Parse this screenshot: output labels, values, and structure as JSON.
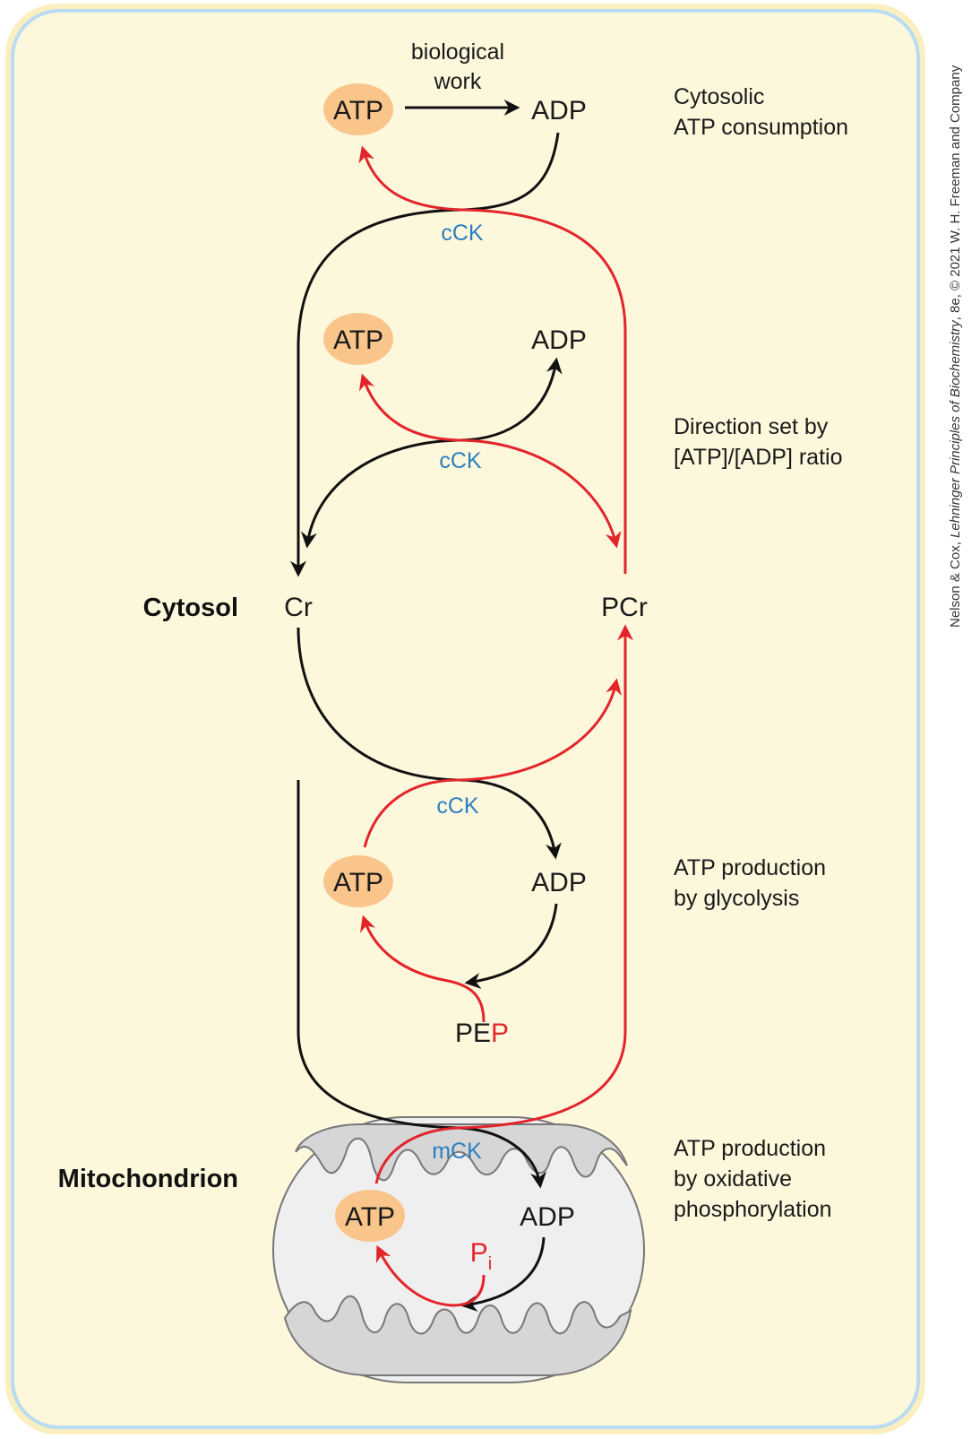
{
  "figure": {
    "credit_prefix": "Nelson & Cox, ",
    "credit_title": "Lehninger Principles of Biochemistry",
    "credit_suffix": ", 8e, © 2021 W. H. Freeman and Company"
  },
  "compartments": {
    "cytosol": "Cytosol",
    "mitochondrion": "Mitochondrion"
  },
  "molecules": {
    "atp": "ATP",
    "adp": "ADP",
    "cr": "Cr",
    "pcr": "PCr",
    "pep_prefix": "PE",
    "pep_p": "P",
    "pi_p": "P",
    "pi_sub": "i"
  },
  "enzymes": {
    "cck": "cCK",
    "mck": "mCK"
  },
  "top_arrow": {
    "line1": "biological",
    "line2": "work"
  },
  "side_labels": {
    "s1": [
      "Cytosolic",
      "ATP consumption"
    ],
    "s2": [
      "Direction set by",
      "[ATP]/[ADP] ratio"
    ],
    "s3": [
      "ATP production",
      "by glycolysis"
    ],
    "s4": [
      "ATP production",
      "by oxidative",
      "phosphorylation"
    ]
  },
  "colors": {
    "cell_fill": "#fdf8dc",
    "cell_border_outer": "#fbefbf",
    "cell_border_inner": "#b9dcf2",
    "atp_fill": "#f9c58b",
    "black_path": "#111111",
    "red_path": "#e3242b",
    "enzyme_text": "#2b7fc0",
    "mito_fill": "#efefef",
    "mito_inner": "#d6d6d6"
  }
}
